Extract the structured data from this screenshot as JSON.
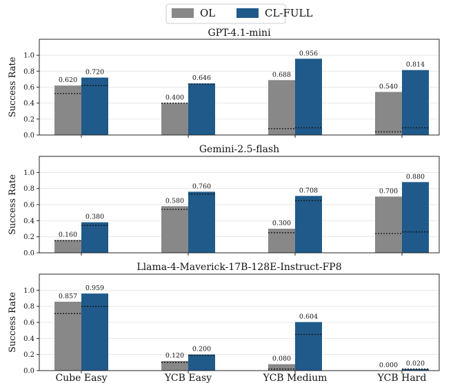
{
  "legend": {
    "items": [
      {
        "label": "OL",
        "color": "#888888"
      },
      {
        "label": "CL-FULL",
        "color": "#1f5a8a"
      }
    ],
    "placement": "top-center"
  },
  "chart_data": [
    {
      "type": "bar",
      "title": "GPT-4.1-mini",
      "ylabel": "Success Rate",
      "ylim": [
        0,
        1.2
      ],
      "yticks": [
        "0.0",
        "0.2",
        "0.4",
        "0.6",
        "0.8",
        "1.0"
      ],
      "categories": [
        "Cube Easy",
        "YCB Easy",
        "YCB Medium",
        "YCB Hard"
      ],
      "series": [
        {
          "name": "OL",
          "values": [
            0.62,
            0.4,
            0.688,
            0.54
          ],
          "labels": [
            "0.620",
            "0.400",
            "0.688",
            "0.540"
          ],
          "reference": [
            0.52,
            0.4,
            0.08,
            0.04
          ]
        },
        {
          "name": "CL-FULL",
          "values": [
            0.72,
            0.646,
            0.956,
            0.814
          ],
          "labels": [
            "0.720",
            "0.646",
            "0.956",
            "0.814"
          ],
          "reference": [
            0.62,
            0.64,
            0.09,
            0.09
          ]
        }
      ],
      "grid": true
    },
    {
      "type": "bar",
      "title": "Gemini-2.5-flash",
      "ylabel": "Success Rate",
      "ylim": [
        0,
        1.2
      ],
      "yticks": [
        "0.0",
        "0.2",
        "0.4",
        "0.6",
        "0.8",
        "1.0"
      ],
      "categories": [
        "Cube Easy",
        "YCB Easy",
        "YCB Medium",
        "YCB Hard"
      ],
      "series": [
        {
          "name": "OL",
          "values": [
            0.16,
            0.58,
            0.3,
            0.7
          ],
          "labels": [
            "0.160",
            "0.580",
            "0.300",
            "0.700"
          ],
          "reference": [
            0.15,
            0.54,
            0.25,
            0.24
          ]
        },
        {
          "name": "CL-FULL",
          "values": [
            0.38,
            0.76,
            0.708,
            0.88
          ],
          "labels": [
            "0.380",
            "0.760",
            "0.708",
            "0.880"
          ],
          "reference": [
            0.34,
            0.73,
            0.65,
            0.26
          ]
        }
      ],
      "grid": true
    },
    {
      "type": "bar",
      "title": "Llama-4-Maverick-17B-128E-Instruct-FP8",
      "ylabel": "Success Rate",
      "ylim": [
        0,
        1.2
      ],
      "yticks": [
        "0.0",
        "0.2",
        "0.4",
        "0.6",
        "0.8",
        "1.0"
      ],
      "categories": [
        "Cube Easy",
        "YCB Easy",
        "YCB Medium",
        "YCB Hard"
      ],
      "series": [
        {
          "name": "OL",
          "values": [
            0.857,
            0.12,
            0.08,
            0.0
          ],
          "labels": [
            "0.857",
            "0.120",
            "0.080",
            "0.000"
          ],
          "reference": [
            0.71,
            0.1,
            0.02,
            0.0
          ]
        },
        {
          "name": "CL-FULL",
          "values": [
            0.959,
            0.2,
            0.604,
            0.02
          ],
          "labels": [
            "0.959",
            "0.200",
            "0.604",
            "0.020"
          ],
          "reference": [
            0.8,
            0.19,
            0.45,
            0.02
          ]
        }
      ],
      "grid": true
    }
  ]
}
